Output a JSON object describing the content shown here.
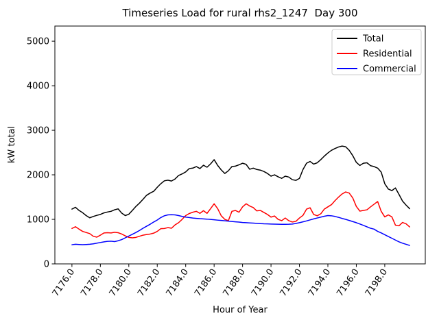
{
  "figure": {
    "background": "#ffffff",
    "axes_edge_color": "#000000"
  },
  "chart_data": {
    "type": "line",
    "title": "Timeseries Load for rural rhs2_1247  Day 300",
    "xlabel": "Hour of Year",
    "ylabel": "kW total",
    "xlim": [
      7174.8,
      7200.85
    ],
    "ylim": [
      0,
      5340
    ],
    "grid": false,
    "xtick_values": [
      7176,
      7178,
      7180,
      7182,
      7184,
      7186,
      7188,
      7190,
      7192,
      7194,
      7196,
      7198
    ],
    "xtick_labels": [
      "7176.0",
      "7178.0",
      "7180.0",
      "7182.0",
      "7184.0",
      "7186.0",
      "7188.0",
      "7190.0",
      "7192.0",
      "7194.0",
      "7196.0",
      "7198.0"
    ],
    "xtick_label_rotation_deg": 55,
    "ytick_values": [
      0,
      1000,
      2000,
      3000,
      4000,
      5000
    ],
    "ytick_labels": [
      "0",
      "1000",
      "2000",
      "3000",
      "4000",
      "5000"
    ],
    "legend": {
      "position": "upper right",
      "border_color": "#cccccc",
      "background": "#ffffff",
      "entries": [
        "Total",
        "Residential",
        "Commercial"
      ]
    },
    "x": [
      7176.0,
      7176.25,
      7176.5,
      7176.75,
      7177.0,
      7177.25,
      7177.5,
      7177.75,
      7178.0,
      7178.25,
      7178.5,
      7178.75,
      7179.0,
      7179.25,
      7179.5,
      7179.75,
      7180.0,
      7180.25,
      7180.5,
      7180.75,
      7181.0,
      7181.25,
      7181.5,
      7181.75,
      7182.0,
      7182.25,
      7182.5,
      7182.75,
      7183.0,
      7183.25,
      7183.5,
      7183.75,
      7184.0,
      7184.25,
      7184.5,
      7184.75,
      7185.0,
      7185.25,
      7185.5,
      7185.75,
      7186.0,
      7186.25,
      7186.5,
      7186.75,
      7187.0,
      7187.25,
      7187.5,
      7187.75,
      7188.0,
      7188.25,
      7188.5,
      7188.75,
      7189.0,
      7189.25,
      7189.5,
      7189.75,
      7190.0,
      7190.25,
      7190.5,
      7190.75,
      7191.0,
      7191.25,
      7191.5,
      7191.75,
      7192.0,
      7192.25,
      7192.5,
      7192.75,
      7193.0,
      7193.25,
      7193.5,
      7193.75,
      7194.0,
      7194.25,
      7194.5,
      7194.75,
      7195.0,
      7195.25,
      7195.5,
      7195.75,
      7196.0,
      7196.25,
      7196.5,
      7196.75,
      7197.0,
      7197.25,
      7197.5,
      7197.75,
      7198.0,
      7198.25,
      7198.5,
      7198.75,
      7199.0,
      7199.25,
      7199.5,
      7199.75
    ],
    "series": [
      {
        "name": "Total",
        "color": "#000000",
        "values": [
          1230,
          1270,
          1200,
          1150,
          1085,
          1035,
          1065,
          1090,
          1110,
          1145,
          1165,
          1180,
          1215,
          1235,
          1140,
          1085,
          1115,
          1200,
          1290,
          1365,
          1450,
          1540,
          1590,
          1630,
          1720,
          1800,
          1865,
          1880,
          1860,
          1905,
          1985,
          2020,
          2065,
          2140,
          2150,
          2185,
          2140,
          2215,
          2170,
          2245,
          2340,
          2210,
          2110,
          2030,
          2090,
          2185,
          2195,
          2225,
          2260,
          2235,
          2125,
          2150,
          2120,
          2105,
          2075,
          2030,
          1970,
          2000,
          1955,
          1920,
          1970,
          1950,
          1890,
          1875,
          1920,
          2120,
          2260,
          2300,
          2240,
          2270,
          2340,
          2420,
          2490,
          2550,
          2590,
          2625,
          2645,
          2630,
          2550,
          2430,
          2280,
          2210,
          2260,
          2270,
          2205,
          2185,
          2150,
          2060,
          1800,
          1680,
          1645,
          1705,
          1560,
          1410,
          1320,
          1240
        ]
      },
      {
        "name": "Residential",
        "color": "#ff0000",
        "values": [
          795,
          835,
          780,
          730,
          705,
          680,
          620,
          600,
          645,
          695,
          700,
          695,
          710,
          700,
          670,
          630,
          595,
          585,
          595,
          620,
          645,
          660,
          670,
          690,
          730,
          790,
          795,
          815,
          800,
          875,
          925,
          1000,
          1085,
          1130,
          1160,
          1180,
          1135,
          1195,
          1135,
          1240,
          1350,
          1240,
          1080,
          1000,
          970,
          1180,
          1200,
          1160,
          1280,
          1350,
          1300,
          1265,
          1190,
          1200,
          1155,
          1110,
          1050,
          1075,
          1000,
          970,
          1030,
          970,
          940,
          955,
          1030,
          1090,
          1230,
          1260,
          1110,
          1080,
          1125,
          1230,
          1280,
          1330,
          1420,
          1500,
          1570,
          1615,
          1590,
          1480,
          1290,
          1185,
          1200,
          1215,
          1280,
          1340,
          1400,
          1180,
          1055,
          1100,
          1055,
          870,
          855,
          930,
          900,
          830
        ]
      },
      {
        "name": "Commercial",
        "color": "#0000ff",
        "values": [
          430,
          440,
          435,
          430,
          435,
          440,
          450,
          465,
          480,
          495,
          505,
          510,
          500,
          520,
          545,
          585,
          625,
          665,
          705,
          750,
          800,
          845,
          890,
          940,
          985,
          1040,
          1080,
          1100,
          1105,
          1100,
          1085,
          1065,
          1050,
          1040,
          1030,
          1022,
          1015,
          1010,
          1005,
          998,
          990,
          982,
          975,
          968,
          960,
          952,
          945,
          938,
          930,
          925,
          920,
          915,
          910,
          905,
          900,
          898,
          895,
          892,
          890,
          889,
          888,
          890,
          895,
          908,
          925,
          945,
          965,
          988,
          1010,
          1030,
          1050,
          1070,
          1085,
          1080,
          1065,
          1045,
          1020,
          1000,
          975,
          950,
          925,
          895,
          865,
          832,
          800,
          780,
          730,
          695,
          655,
          615,
          575,
          535,
          495,
          465,
          440,
          415
        ]
      }
    ]
  }
}
